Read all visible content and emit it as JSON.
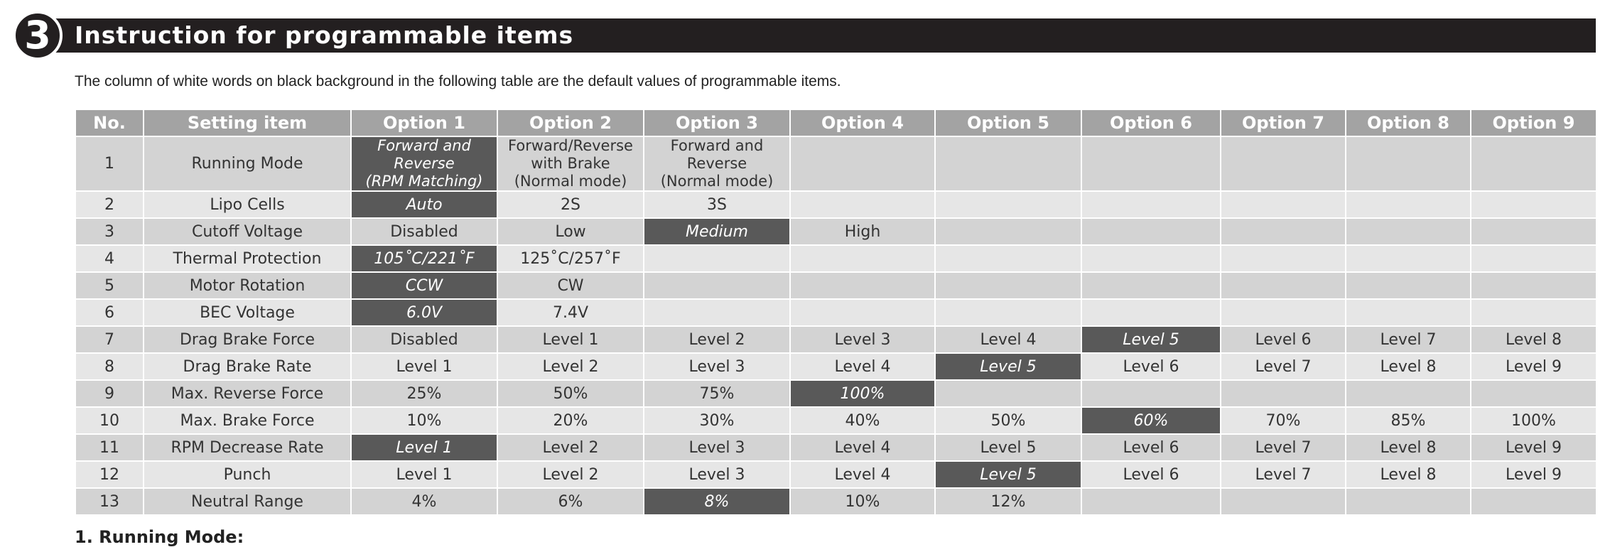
{
  "section": {
    "number": "3",
    "title": "Instruction for programmable items"
  },
  "intro": "The column of white words on black background in the following table are the default values of programmable items.",
  "table": {
    "headers": [
      "No.",
      "Setting item",
      "Option 1",
      "Option 2",
      "Option 3",
      "Option 4",
      "Option 5",
      "Option 6",
      "Option 7",
      "Option 8",
      "Option 9"
    ],
    "rows": [
      {
        "no": "1",
        "item": "Running Mode",
        "options": [
          [
            "Forward and Reverse",
            "(RPM Matching)"
          ],
          [
            "Forward/Reverse",
            "with Brake",
            "(Normal mode)"
          ],
          [
            "Forward and",
            "Reverse",
            "(Normal mode)"
          ],
          "",
          "",
          "",
          "",
          "",
          ""
        ],
        "default": 0
      },
      {
        "no": "2",
        "item": "Lipo Cells",
        "options": [
          "Auto",
          "2S",
          "3S",
          "",
          "",
          "",
          "",
          "",
          ""
        ],
        "default": 0
      },
      {
        "no": "3",
        "item": "Cutoff Voltage",
        "options": [
          "Disabled",
          "Low",
          "Medium",
          "High",
          "",
          "",
          "",
          "",
          ""
        ],
        "default": 2
      },
      {
        "no": "4",
        "item": "Thermal Protection",
        "options": [
          "105˚C/221˚F",
          "125˚C/257˚F",
          "",
          "",
          "",
          "",
          "",
          "",
          ""
        ],
        "default": 0
      },
      {
        "no": "5",
        "item": "Motor Rotation",
        "options": [
          "CCW",
          "CW",
          "",
          "",
          "",
          "",
          "",
          "",
          ""
        ],
        "default": 0
      },
      {
        "no": "6",
        "item": "BEC Voltage",
        "options": [
          "6.0V",
          "7.4V",
          "",
          "",
          "",
          "",
          "",
          "",
          ""
        ],
        "default": 0
      },
      {
        "no": "7",
        "item": "Drag Brake Force",
        "options": [
          "Disabled",
          "Level 1",
          "Level 2",
          "Level 3",
          "Level 4",
          "Level 5",
          "Level 6",
          "Level 7",
          "Level 8"
        ],
        "default": 5
      },
      {
        "no": "8",
        "item": "Drag Brake Rate",
        "options": [
          "Level 1",
          "Level 2",
          "Level 3",
          "Level 4",
          "Level 5",
          "Level 6",
          "Level 7",
          "Level 8",
          "Level 9"
        ],
        "default": 4
      },
      {
        "no": "9",
        "item": "Max. Reverse Force",
        "options": [
          "25%",
          "50%",
          "75%",
          "100%",
          "",
          "",
          "",
          "",
          ""
        ],
        "default": 3
      },
      {
        "no": "10",
        "item": "Max. Brake Force",
        "options": [
          "10%",
          "20%",
          "30%",
          "40%",
          "50%",
          "60%",
          "70%",
          "85%",
          "100%"
        ],
        "default": 5
      },
      {
        "no": "11",
        "item": "RPM Decrease Rate",
        "options": [
          "Level 1",
          "Level 2",
          "Level 3",
          "Level 4",
          "Level 5",
          "Level 6",
          "Level 7",
          "Level 8",
          "Level 9"
        ],
        "default": 0
      },
      {
        "no": "12",
        "item": "Punch",
        "options": [
          "Level 1",
          "Level 2",
          "Level 3",
          "Level 4",
          "Level 5",
          "Level 6",
          "Level 7",
          "Level 8",
          "Level 9"
        ],
        "default": 4
      },
      {
        "no": "13",
        "item": "Neutral Range",
        "options": [
          "4%",
          "6%",
          "8%",
          "10%",
          "12%",
          "",
          "",
          "",
          ""
        ],
        "default": 2
      }
    ]
  },
  "next_heading": "1. Running Mode:"
}
